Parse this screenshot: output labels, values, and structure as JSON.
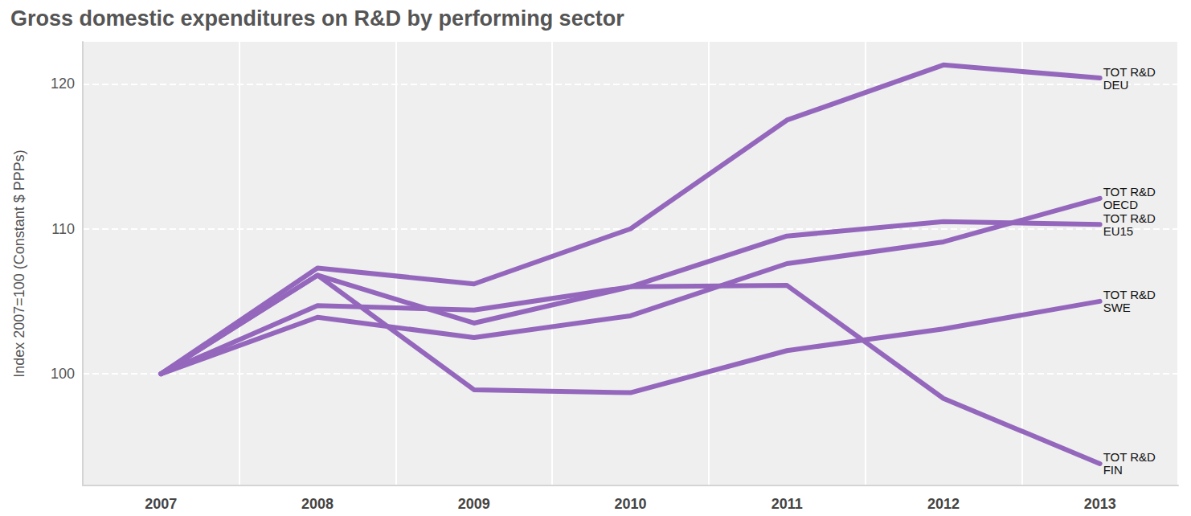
{
  "chart_data": {
    "type": "line",
    "title": "Gross domestic expenditures on R&D by performing sector",
    "y_label": "Index 2007=100 (Constant $ PPPs)",
    "categories": [
      "2007",
      "2008",
      "2009",
      "2010",
      "2011",
      "2012",
      "2013"
    ],
    "series": [
      {
        "name": "TOT R&D\nDEU",
        "color": "#9467bd",
        "values": [
          100,
          107.3,
          106.2,
          110.0,
          117.5,
          121.3,
          120.4
        ]
      },
      {
        "name": "TOT R&D\nOECD",
        "color": "#9467bd",
        "values": [
          100,
          103.9,
          102.5,
          104.0,
          107.6,
          109.1,
          112.1
        ]
      },
      {
        "name": "TOT R&D\nEU15",
        "color": "#9467bd",
        "values": [
          100,
          104.7,
          104.4,
          106.0,
          109.5,
          110.5,
          110.3
        ]
      },
      {
        "name": "TOT R&D\nSWE",
        "color": "#9467bd",
        "values": [
          100,
          106.8,
          98.9,
          98.7,
          101.6,
          103.1,
          105.0
        ]
      },
      {
        "name": "TOT R&D\nFIN",
        "color": "#9467bd",
        "values": [
          100,
          106.8,
          103.5,
          106.0,
          106.1,
          98.3,
          93.8
        ]
      }
    ],
    "ylim": [
      92.3,
      122.9
    ],
    "yticks": [
      100,
      110,
      120
    ],
    "grid": true
  }
}
